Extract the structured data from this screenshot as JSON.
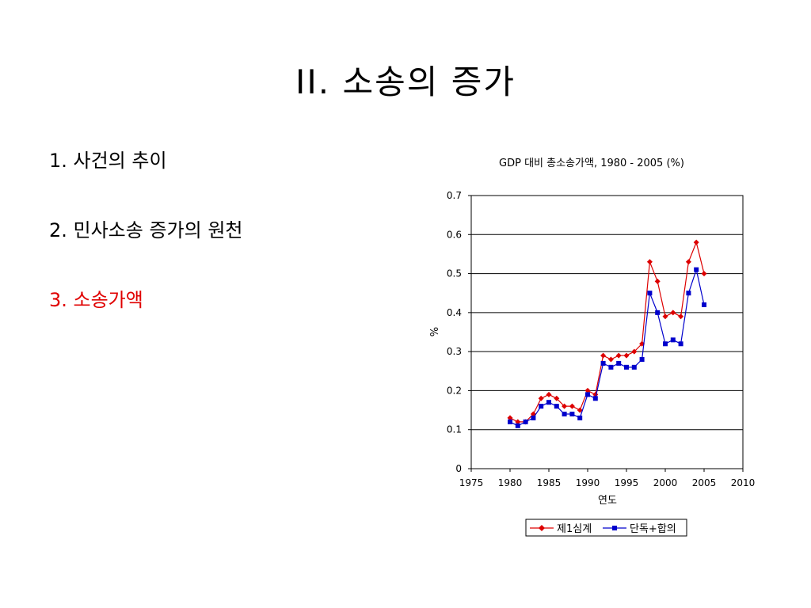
{
  "slide": {
    "title": "II. 소송의 증가",
    "items": [
      {
        "label": "1.  사건의 추이",
        "active": false
      },
      {
        "label": "2.  민사소송 증가의 원천",
        "active": false
      },
      {
        "label": "3.  소송가액",
        "active": true
      }
    ],
    "active_color": "#e00000"
  },
  "chart_data": {
    "type": "line",
    "title": "GDP 대비 총소송가액, 1980 - 2005 (%)",
    "xlabel": "연도",
    "ylabel": "%",
    "xlim": [
      1975,
      2010
    ],
    "ylim": [
      0,
      0.7
    ],
    "xticks": [
      "1975",
      "1980",
      "1985",
      "1990",
      "1995",
      "2000",
      "2005",
      "2010"
    ],
    "yticks": [
      "0",
      "0.1",
      "0.2",
      "0.3",
      "0.4",
      "0.5",
      "0.6",
      "0.7"
    ],
    "grid": "horizontal",
    "legend": "bottom",
    "x": [
      1980,
      1981,
      1982,
      1983,
      1984,
      1985,
      1986,
      1987,
      1988,
      1989,
      1990,
      1991,
      1992,
      1993,
      1994,
      1995,
      1996,
      1997,
      1998,
      1999,
      2000,
      2001,
      2002,
      2003,
      2004,
      2005
    ],
    "series": [
      {
        "name": "제1심계",
        "color": "#dd0000",
        "marker": "diamond",
        "values": [
          0.13,
          0.12,
          0.12,
          0.14,
          0.18,
          0.19,
          0.18,
          0.16,
          0.16,
          0.15,
          0.2,
          0.19,
          0.29,
          0.28,
          0.29,
          0.29,
          0.3,
          0.32,
          0.53,
          0.48,
          0.39,
          0.4,
          0.39,
          0.53,
          0.58,
          0.5
        ]
      },
      {
        "name": "단독+합의",
        "color": "#0000cc",
        "marker": "square",
        "values": [
          0.12,
          0.11,
          0.12,
          0.13,
          0.16,
          0.17,
          0.16,
          0.14,
          0.14,
          0.13,
          0.19,
          0.18,
          0.27,
          0.26,
          0.27,
          0.26,
          0.26,
          0.28,
          0.45,
          0.4,
          0.32,
          0.33,
          0.32,
          0.45,
          0.51,
          0.42
        ]
      }
    ]
  }
}
